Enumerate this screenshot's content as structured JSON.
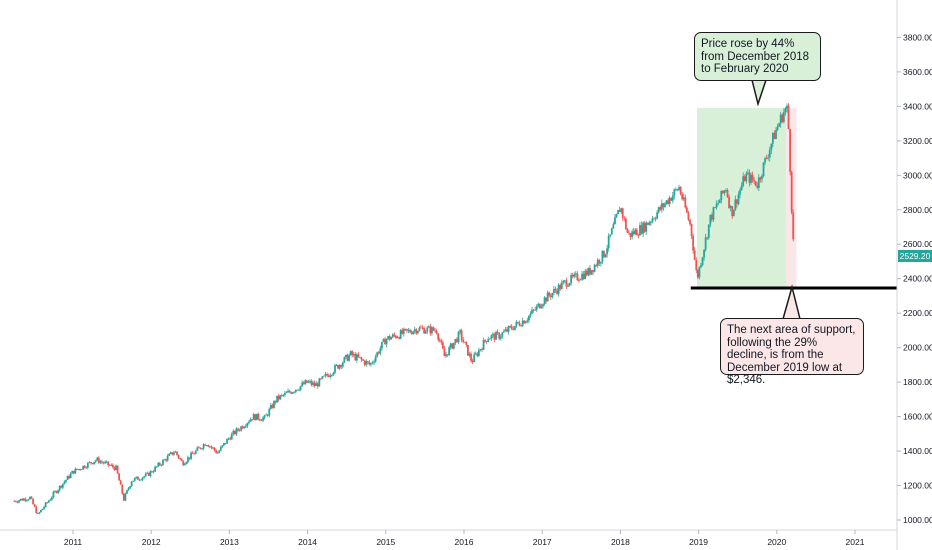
{
  "chart_data": {
    "type": "candlestick",
    "title": "",
    "xlabel": "",
    "ylabel": "",
    "ylim": [
      950,
      3980
    ],
    "xlim": [
      2010.25,
      2021.35
    ],
    "y_ticks": [
      "1000.00",
      "1200.00",
      "1400.00",
      "1600.00",
      "1800.00",
      "2000.00",
      "2200.00",
      "2400.00",
      "2600.00",
      "2800.00",
      "3000.00",
      "3200.00",
      "3400.00",
      "3600.00",
      "3800.00"
    ],
    "x_ticks": [
      "2011",
      "2012",
      "2013",
      "2014",
      "2015",
      "2016",
      "2017",
      "2018",
      "2019",
      "2020",
      "2021"
    ],
    "last_price": "2529.20",
    "support_level": 2346,
    "x": [
      2010.25,
      2010.45,
      2010.55,
      2010.75,
      2011.0,
      2011.3,
      2011.55,
      2011.65,
      2011.75,
      2011.95,
      2012.3,
      2012.4,
      2012.7,
      2012.85,
      2013.0,
      2013.3,
      2013.45,
      2013.6,
      2014.0,
      2014.1,
      2014.55,
      2014.8,
      2015.0,
      2015.4,
      2015.65,
      2015.75,
      2015.95,
      2016.1,
      2016.3,
      2016.45,
      2016.8,
      2016.95,
      2017.0,
      2017.3,
      2017.6,
      2017.8,
      2018.0,
      2018.1,
      2018.3,
      2018.5,
      2018.75,
      2018.9,
      2018.98,
      2019.15,
      2019.35,
      2019.42,
      2019.6,
      2019.75,
      2019.98,
      2020.1,
      2020.14,
      2020.17,
      2020.2,
      2020.22
    ],
    "close": [
      1110,
      1130,
      1030,
      1150,
      1280,
      1350,
      1300,
      1120,
      1230,
      1260,
      1400,
      1330,
      1450,
      1390,
      1480,
      1600,
      1590,
      1700,
      1800,
      1780,
      1960,
      1900,
      2050,
      2110,
      2100,
      1950,
      2080,
      1920,
      2060,
      2070,
      2170,
      2240,
      2270,
      2380,
      2440,
      2550,
      2820,
      2650,
      2700,
      2800,
      2930,
      2700,
      2400,
      2750,
      2930,
      2780,
      3000,
      2950,
      3250,
      3380,
      3380,
      3050,
      2700,
      2530
    ],
    "annotations": [
      "Price rose by 44% from December 2018 to February 2020",
      "The next area of support, following the 29% decline, is from the December 2019 low at $2,346."
    ],
    "grid": false,
    "colors": {
      "up": "#26a69a",
      "down": "#ef5350",
      "rise_zone": "#d8f0d8",
      "fall_zone": "#fbe7e7",
      "support": "#000000",
      "badge": "#26a69a"
    }
  }
}
